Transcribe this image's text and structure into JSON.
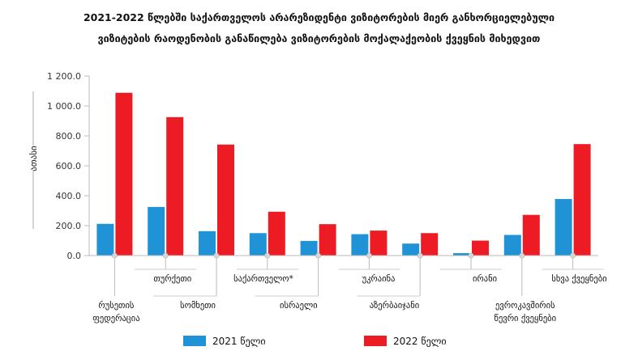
{
  "chart_data": {
    "type": "bar",
    "title_lines": [
      "2021-2022 წლებში საქართველოს არარეზიდენტი ვიზიტორების მიერ განხორციელებული",
      "ვიზიტების რაოდენობის განაწილება ვიზიტორების მოქალაქეობის ქვეყნის მიხედვით"
    ],
    "ylabel": "ათასი",
    "xlabel": "",
    "ylim": [
      0,
      1200
    ],
    "yticks": [
      "0.0",
      "200.0",
      "400.0",
      "600.0",
      "800.0",
      "1 000.0",
      "1 200.0"
    ],
    "categories": [
      [
        "რუსეთის",
        "ფედერაცია"
      ],
      [
        "თურქეთი"
      ],
      [
        "სომხეთი"
      ],
      [
        "საქართველო*"
      ],
      [
        "ისრაელი"
      ],
      [
        "უკრაინა"
      ],
      [
        "აზერბაიჯანი"
      ],
      [
        "ირანი"
      ],
      [
        "ევროკავშირის",
        "წევრი ქვეყნები"
      ],
      [
        "სხვა ქვეყნები"
      ]
    ],
    "series": [
      {
        "name": "2021 წელი",
        "color": "#1f93d6",
        "values": [
          212,
          325,
          163,
          150,
          98,
          143,
          80,
          16,
          138,
          378
        ]
      },
      {
        "name": "2022 წელი",
        "color": "#ed1c24",
        "values": [
          1088,
          925,
          742,
          293,
          210,
          167,
          150,
          100,
          272,
          745
        ]
      }
    ],
    "grid": false,
    "legend_position": "bottom"
  }
}
